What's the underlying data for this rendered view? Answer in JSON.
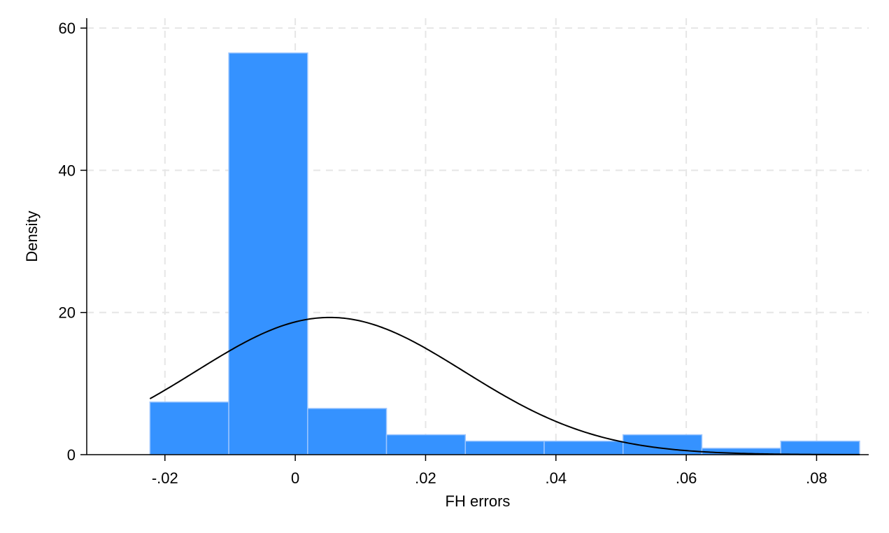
{
  "chart_data": {
    "type": "bar",
    "title": "",
    "xlabel": "FH errors",
    "ylabel": "Density",
    "xlim": [
      -0.032,
      0.088
    ],
    "ylim": [
      0,
      61
    ],
    "grid": true,
    "x_ticks": [
      -0.02,
      0,
      0.02,
      0.04,
      0.06,
      0.08
    ],
    "x_tick_labels": [
      "-.02",
      "0",
      ".02",
      ".04",
      ".06",
      ".08"
    ],
    "y_ticks": [
      0,
      20,
      40,
      60
    ],
    "y_tick_labels": [
      "0",
      "20",
      "40",
      "60"
    ],
    "bin_edges": [
      -0.0223,
      -0.0102,
      0.0019,
      0.014,
      0.0261,
      0.0382,
      0.0503,
      0.0624,
      0.0745,
      0.0866
    ],
    "values": [
      7.4,
      56.5,
      6.5,
      2.8,
      1.9,
      1.9,
      2.8,
      0.9,
      1.9
    ],
    "normal_overlay": {
      "mean": 0.0053,
      "sd": 0.0206,
      "peak_density": 19.3
    },
    "colors": {
      "bars": "#3592ff",
      "bar_edge": "#9cc6ff",
      "curve": "#000000",
      "grid": "#e6e6e6",
      "axis": "#000000"
    }
  }
}
